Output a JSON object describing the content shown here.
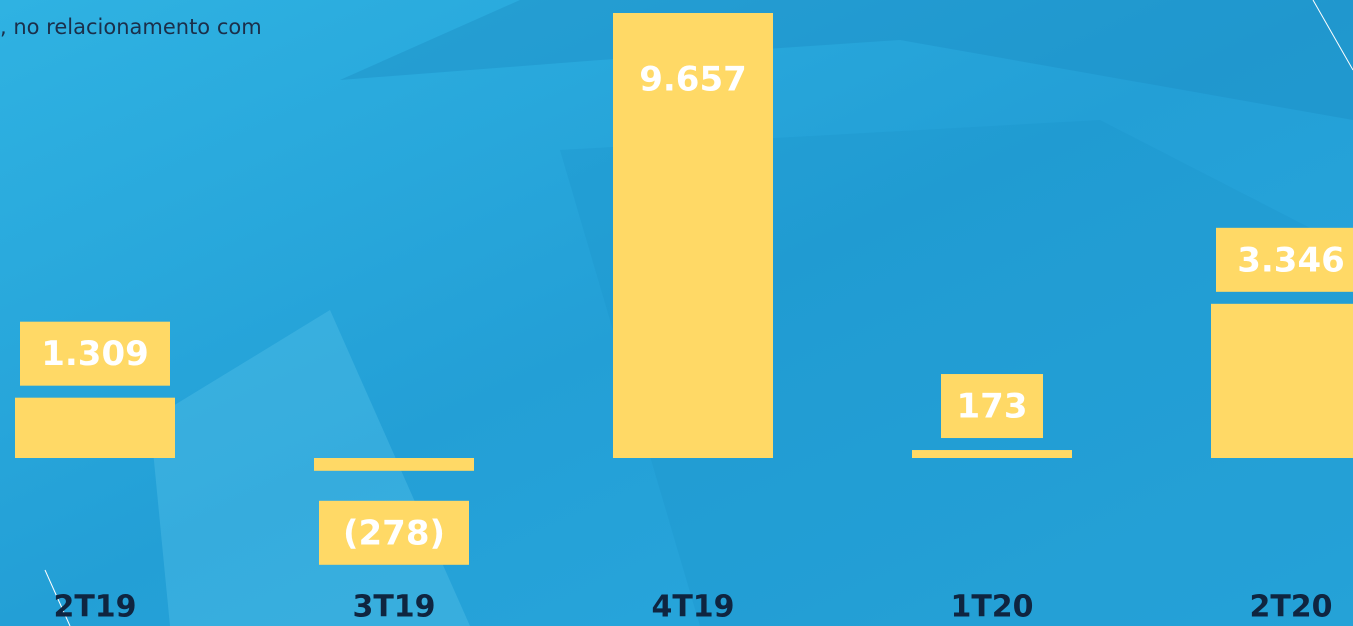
{
  "chart_data": {
    "type": "bar",
    "subtitle": ", no relacionamento com",
    "categories": [
      "2T19",
      "3T19",
      "4T19",
      "1T20",
      "2T20"
    ],
    "values": [
      1309,
      -278,
      9657,
      173,
      3346
    ],
    "value_labels": [
      "1.309",
      "(278)",
      "9.657",
      "173",
      "3.346"
    ],
    "color": "#ffd966"
  }
}
